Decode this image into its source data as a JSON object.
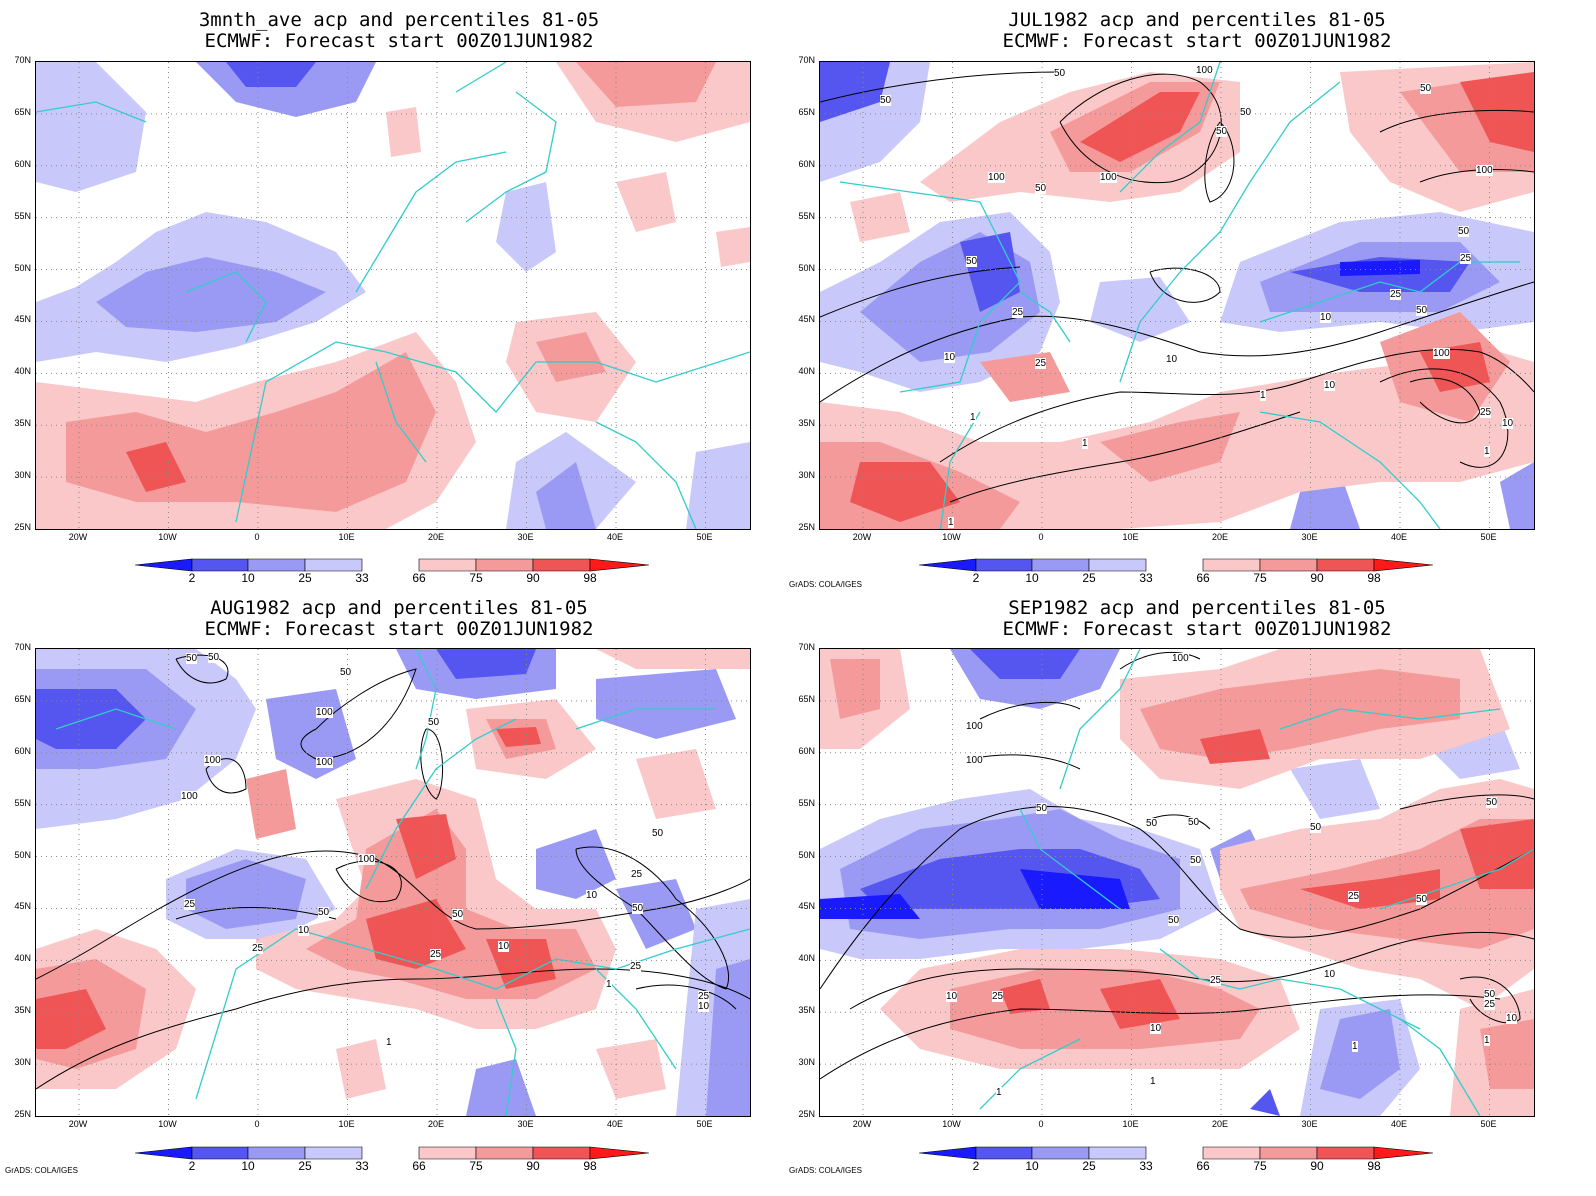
{
  "colors": {
    "p2": "#1a1aff",
    "p10": "#5555f0",
    "p25": "#9a9af5",
    "p33": "#c8c8fa",
    "p66": "#fac8c8",
    "p75": "#f59a9a",
    "p90": "#f05555",
    "p98": "#ff1a1a",
    "coast": "#33cccc",
    "contour": "#000000"
  },
  "lat_labels": [
    "70N",
    "65N",
    "60N",
    "55N",
    "50N",
    "45N",
    "40N",
    "35N",
    "30N",
    "25N"
  ],
  "lon_labels": [
    "20W",
    "10W",
    "0",
    "10E",
    "20E",
    "30E",
    "40E",
    "50E"
  ],
  "colorbar_labels": [
    "2",
    "10",
    "25",
    "33",
    "66",
    "75",
    "90",
    "98"
  ],
  "credit": "GrADS: COLA/IGES",
  "panels": [
    {
      "title1": "3mnth_ave acp and percentiles 81-05",
      "title2": "ECMWF: Forecast start 00Z01JUN1982",
      "contour_labels": []
    },
    {
      "title1": "JUL1982 acp and percentiles 81-05",
      "title2": "ECMWF: Forecast start 00Z01JUN1982",
      "contour_labels": [
        "50",
        "50",
        "100",
        "50",
        "50",
        "100",
        "100",
        "50",
        "100",
        "50",
        "25",
        "50",
        "25",
        "50",
        "25",
        "10",
        "50",
        "100",
        "10",
        "25",
        "10",
        "10",
        "25",
        "10",
        "1",
        "1",
        "1",
        "1",
        "1"
      ]
    },
    {
      "title1": "AUG1982 acp and percentiles 81-05",
      "title2": "ECMWF: Forecast start 00Z01JUN1982",
      "contour_labels": [
        "50",
        "50",
        "50",
        "100",
        "50",
        "100",
        "100",
        "100",
        "50",
        "100",
        "25",
        "10",
        "25",
        "50",
        "10",
        "50",
        "50",
        "25",
        "25",
        "10",
        "10",
        "25",
        "25",
        "1",
        "1"
      ]
    },
    {
      "title1": "SEP1982 acp and percentiles 81-05",
      "title2": "ECMWF: Forecast start 00Z01JUN1982",
      "contour_labels": [
        "100",
        "100",
        "100",
        "50",
        "50",
        "50",
        "50",
        "50",
        "50",
        "50",
        "25",
        "50",
        "25",
        "10",
        "25",
        "10",
        "10",
        "1",
        "1",
        "50",
        "25",
        "10",
        "1",
        "1"
      ]
    }
  ]
}
